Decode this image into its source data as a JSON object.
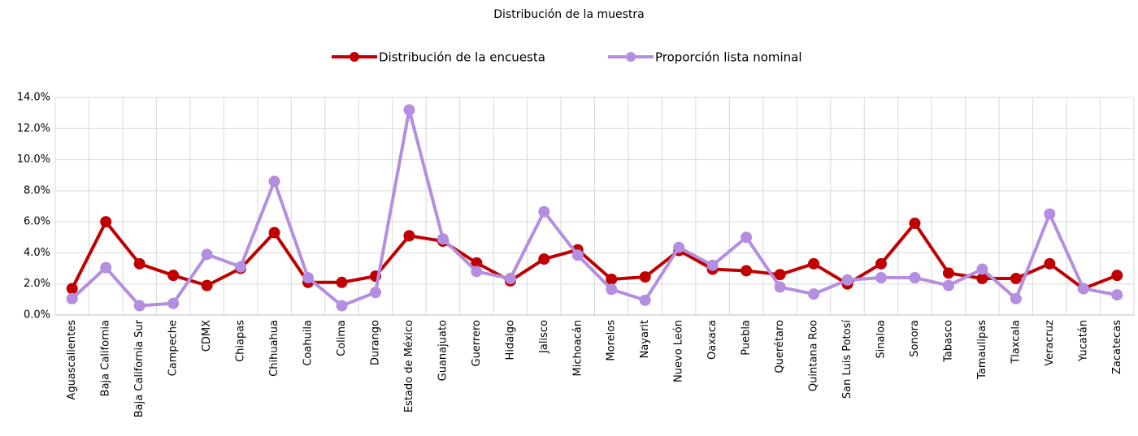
{
  "chart_data": {
    "type": "line",
    "title": "Distribución de la muestra",
    "categories": [
      "Aguascalientes",
      "Baja California",
      "Baja California Sur",
      "Campeche",
      "CDMX",
      "Chiapas",
      "Chihuahua",
      "Coahuila",
      "Colima",
      "Durango",
      "Estado de México",
      "Guanajuato",
      "Guerrero",
      "Hidalgo",
      "Jalisco",
      "Michoacán",
      "Morelos",
      "Nayarit",
      "Nuevo León",
      "Oaxaca",
      "Puebla",
      "Querétaro",
      "Quintana Roo",
      "San Luis Potosí",
      "Sinaloa",
      "Sonora",
      "Tabasco",
      "Tamaulipas",
      "Tlaxcala",
      "Veracruz",
      "Yucatán",
      "Zacatecas"
    ],
    "series": [
      {
        "name": "Distribución de la encuesta",
        "color": "#c00000",
        "values": [
          1.7,
          6.0,
          3.3,
          2.55,
          1.9,
          3.0,
          5.3,
          2.1,
          2.1,
          2.5,
          5.1,
          4.75,
          3.35,
          2.2,
          3.6,
          4.2,
          2.3,
          2.45,
          4.15,
          2.95,
          2.85,
          2.6,
          3.3,
          2.0,
          3.3,
          5.9,
          2.7,
          2.35,
          2.35,
          3.3,
          1.7,
          2.55
        ]
      },
      {
        "name": "Proporción lista nominal",
        "color": "#b48ee0",
        "values": [
          1.05,
          3.05,
          0.6,
          0.75,
          3.9,
          3.1,
          8.6,
          2.4,
          0.6,
          1.45,
          13.2,
          4.9,
          2.8,
          2.35,
          6.65,
          3.85,
          1.65,
          0.95,
          4.35,
          3.2,
          5.0,
          1.8,
          1.35,
          2.25,
          2.4,
          2.4,
          1.9,
          2.95,
          1.05,
          6.5,
          1.7,
          1.3
        ]
      }
    ],
    "ylim": [
      0,
      14
    ],
    "yticks": [
      {
        "value": 0,
        "label": "0.0%"
      },
      {
        "value": 2,
        "label": "2.0%"
      },
      {
        "value": 4,
        "label": "4.0%"
      },
      {
        "value": 6,
        "label": "6.0%"
      },
      {
        "value": 8,
        "label": "8.0%"
      },
      {
        "value": 10,
        "label": "10.0%"
      },
      {
        "value": 12,
        "label": "12.0%"
      },
      {
        "value": 14,
        "label": "14.0%"
      }
    ],
    "grid": true,
    "legend": "top"
  }
}
